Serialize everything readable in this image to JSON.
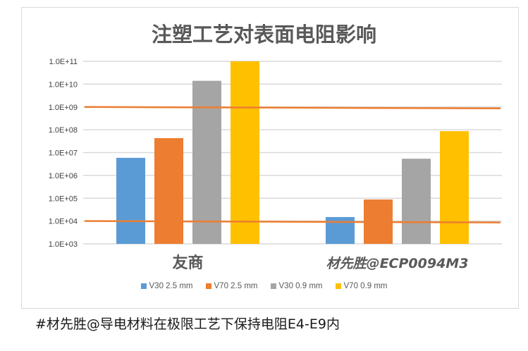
{
  "chart_data": {
    "type": "bar",
    "title": "注塑工艺对表面电阻影响",
    "yscale": "log",
    "ylim": [
      1000,
      100000000000
    ],
    "yticks": [
      "1.0E+11",
      "1.0E+10",
      "1.0E+09",
      "1.0E+08",
      "1.0E+07",
      "1.0E+06",
      "1.0E+05",
      "1.0E+04",
      "1.0E+03"
    ],
    "categories": [
      "友商",
      "材先胜@ECP0094M3"
    ],
    "series": [
      {
        "name": "V30 2.5 mm",
        "color": "#5b9bd5",
        "values": [
          5900000,
          15000
        ]
      },
      {
        "name": "V70 2.5 mm",
        "color": "#ed7d31",
        "values": [
          43000000,
          88000
        ]
      },
      {
        "name": "V30 0.9 mm",
        "color": "#a5a5a5",
        "values": [
          14000000000,
          5400000
        ]
      },
      {
        "name": "V70 0.9 mm",
        "color": "#ffc000",
        "values": [
          100000000000,
          87000000
        ]
      }
    ],
    "reference_lines": [
      {
        "value": 1000000000,
        "color": "#ed7d31"
      },
      {
        "value": 10000,
        "color": "#ed7d31"
      }
    ],
    "grid": true,
    "legend_position": "bottom"
  },
  "caption": "#材先胜@导电材料在极限工艺下保持电阻E4-E9内"
}
